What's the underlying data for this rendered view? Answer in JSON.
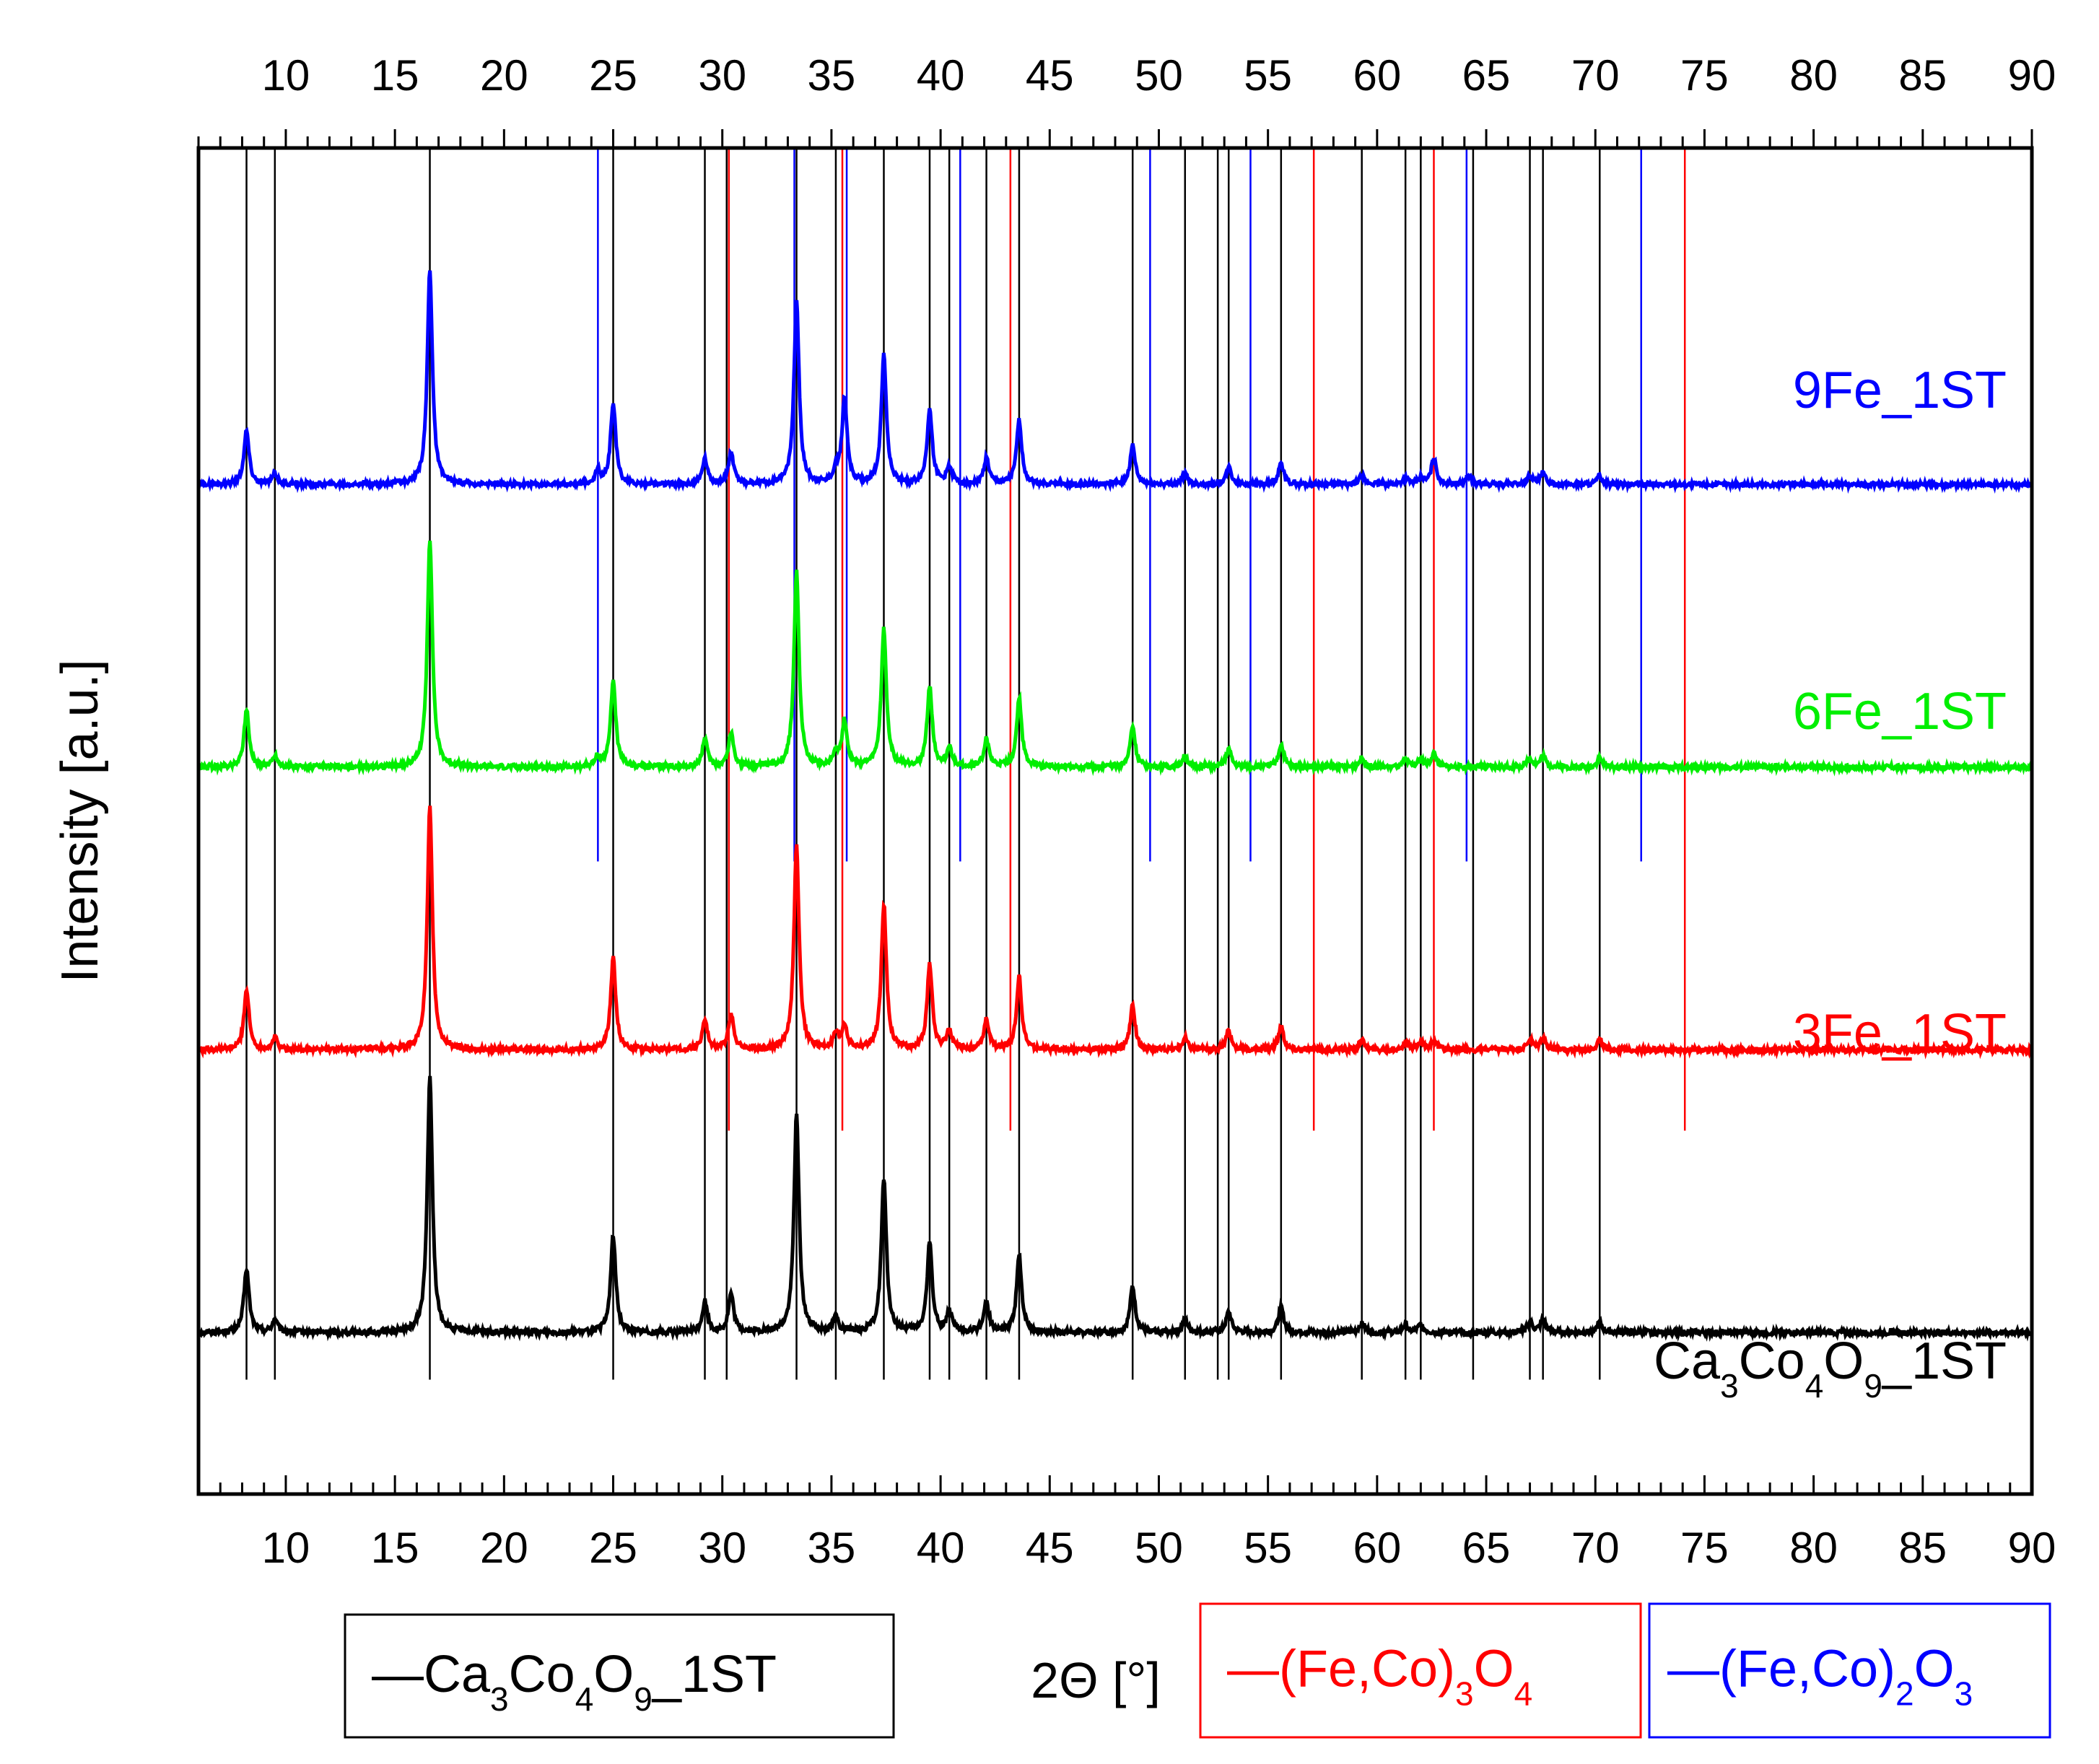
{
  "chart_data": {
    "type": "line",
    "title": "",
    "xlabel": "2Θ [°]",
    "ylabel": "Intensity [a.u.]",
    "xlim": [
      6,
      90
    ],
    "ylim": [
      0,
      100
    ],
    "x_ticks": [
      10,
      15,
      20,
      25,
      30,
      35,
      40,
      45,
      50,
      55,
      60,
      65,
      70,
      75,
      80,
      85,
      90
    ],
    "x_tick_labels": [
      "10",
      "15",
      "20",
      "25",
      "30",
      "35",
      "40",
      "45",
      "50",
      "55",
      "60",
      "65",
      "70",
      "75",
      "80",
      "85",
      "90"
    ],
    "peaks": [
      {
        "x": 8.2,
        "h": 0.25
      },
      {
        "x": 9.5,
        "h": 0.05
      },
      {
        "x": 16.6,
        "h": 1.0
      },
      {
        "x": 25.0,
        "h": 0.38
      },
      {
        "x": 29.2,
        "h": 0.12
      },
      {
        "x": 30.4,
        "h": 0.15
      },
      {
        "x": 33.4,
        "h": 0.85
      },
      {
        "x": 35.2,
        "h": 0.06
      },
      {
        "x": 37.4,
        "h": 0.6
      },
      {
        "x": 39.5,
        "h": 0.35
      },
      {
        "x": 40.4,
        "h": 0.08
      },
      {
        "x": 42.1,
        "h": 0.12
      },
      {
        "x": 43.6,
        "h": 0.3
      },
      {
        "x": 48.8,
        "h": 0.18
      },
      {
        "x": 51.2,
        "h": 0.05
      },
      {
        "x": 53.2,
        "h": 0.08
      },
      {
        "x": 55.6,
        "h": 0.1
      },
      {
        "x": 59.3,
        "h": 0.04
      },
      {
        "x": 61.3,
        "h": 0.03
      },
      {
        "x": 62.0,
        "h": 0.03
      },
      {
        "x": 67.0,
        "h": 0.04
      },
      {
        "x": 67.6,
        "h": 0.05
      },
      {
        "x": 70.2,
        "h": 0.04
      }
    ],
    "series": [
      {
        "name": "Ca3Co4O9_1ST",
        "color": "#000000",
        "baseline": 12,
        "scale": 19,
        "extra_peaks": []
      },
      {
        "name": "3Fe_1ST",
        "color": "#ff0000",
        "baseline": 33,
        "scale": 18,
        "extra_peaks": [
          {
            "x": 35.6,
            "h": 0.1
          },
          {
            "x": 62.6,
            "h": 0.04
          }
        ]
      },
      {
        "name": "6Fe_1ST",
        "color": "#00ee00",
        "baseline": 54,
        "scale": 17,
        "extra_peaks": [
          {
            "x": 24.3,
            "h": 0.04
          },
          {
            "x": 35.6,
            "h": 0.2
          },
          {
            "x": 62.6,
            "h": 0.06
          }
        ]
      },
      {
        "name": "9Fe_1ST",
        "color": "#0000ff",
        "baseline": 75,
        "scale": 16,
        "extra_peaks": [
          {
            "x": 24.3,
            "h": 0.06
          },
          {
            "x": 35.6,
            "h": 0.4
          },
          {
            "x": 62.6,
            "h": 0.12
          },
          {
            "x": 64.2,
            "h": 0.04
          }
        ]
      }
    ],
    "series_labels": [
      {
        "name": "Ca3Co4O9_1ST",
        "color": "#000000",
        "parts": [
          {
            "t": "Ca"
          },
          {
            "t": "3",
            "sub": true
          },
          {
            "t": "Co"
          },
          {
            "t": "4",
            "sub": true
          },
          {
            "t": "O"
          },
          {
            "t": "9",
            "sub": true
          },
          {
            "t": "_1ST"
          }
        ]
      },
      {
        "name": "3Fe_1ST",
        "color": "#ff0000",
        "parts": [
          {
            "t": "3Fe_1ST"
          }
        ]
      },
      {
        "name": "6Fe_1ST",
        "color": "#00ee00",
        "parts": [
          {
            "t": "6Fe_1ST"
          }
        ]
      },
      {
        "name": "9Fe_1ST",
        "color": "#0000ff",
        "parts": [
          {
            "t": "9Fe_1ST"
          }
        ]
      }
    ],
    "reference_lines": [
      {
        "phase": "Ca3Co4O9_1ST",
        "color": "#000000",
        "y_range": [
          8.5,
          100
        ],
        "x": [
          8.2,
          9.5,
          16.6,
          25.0,
          29.2,
          30.2,
          33.4,
          35.2,
          37.4,
          39.5,
          40.4,
          42.1,
          43.6,
          48.8,
          51.2,
          52.7,
          53.2,
          55.6,
          59.3,
          61.3,
          62.0,
          64.4,
          67.0,
          67.6,
          70.2
        ]
      },
      {
        "phase": "(Fe,Co)3O4",
        "color": "#ff0000",
        "y_range": [
          27,
          100
        ],
        "x": [
          30.3,
          35.5,
          43.2,
          57.1,
          62.6,
          74.1
        ]
      },
      {
        "phase": "(Fe,Co)2O3",
        "color": "#0000ff",
        "y_range": [
          47,
          100
        ],
        "x": [
          24.3,
          33.3,
          35.7,
          40.9,
          49.6,
          54.2,
          64.1,
          72.1
        ]
      }
    ],
    "legend_location": "bottom",
    "legend": [
      {
        "color": "#000000",
        "parts": [
          {
            "t": "—Ca"
          },
          {
            "t": "3",
            "sub": true
          },
          {
            "t": "Co"
          },
          {
            "t": "4",
            "sub": true
          },
          {
            "t": "O"
          },
          {
            "t": "9",
            "sub": true
          },
          {
            "t": "_1ST"
          }
        ]
      },
      {
        "color": "#ff0000",
        "parts": [
          {
            "t": "—(Fe,Co)"
          },
          {
            "t": "3",
            "sub": true
          },
          {
            "t": "O"
          },
          {
            "t": "4",
            "sub": true
          }
        ]
      },
      {
        "color": "#0000ff",
        "parts": [
          {
            "t": "—(Fe,Co)"
          },
          {
            "t": "2",
            "sub": true
          },
          {
            "t": "O"
          },
          {
            "t": "3",
            "sub": true
          }
        ]
      }
    ]
  }
}
